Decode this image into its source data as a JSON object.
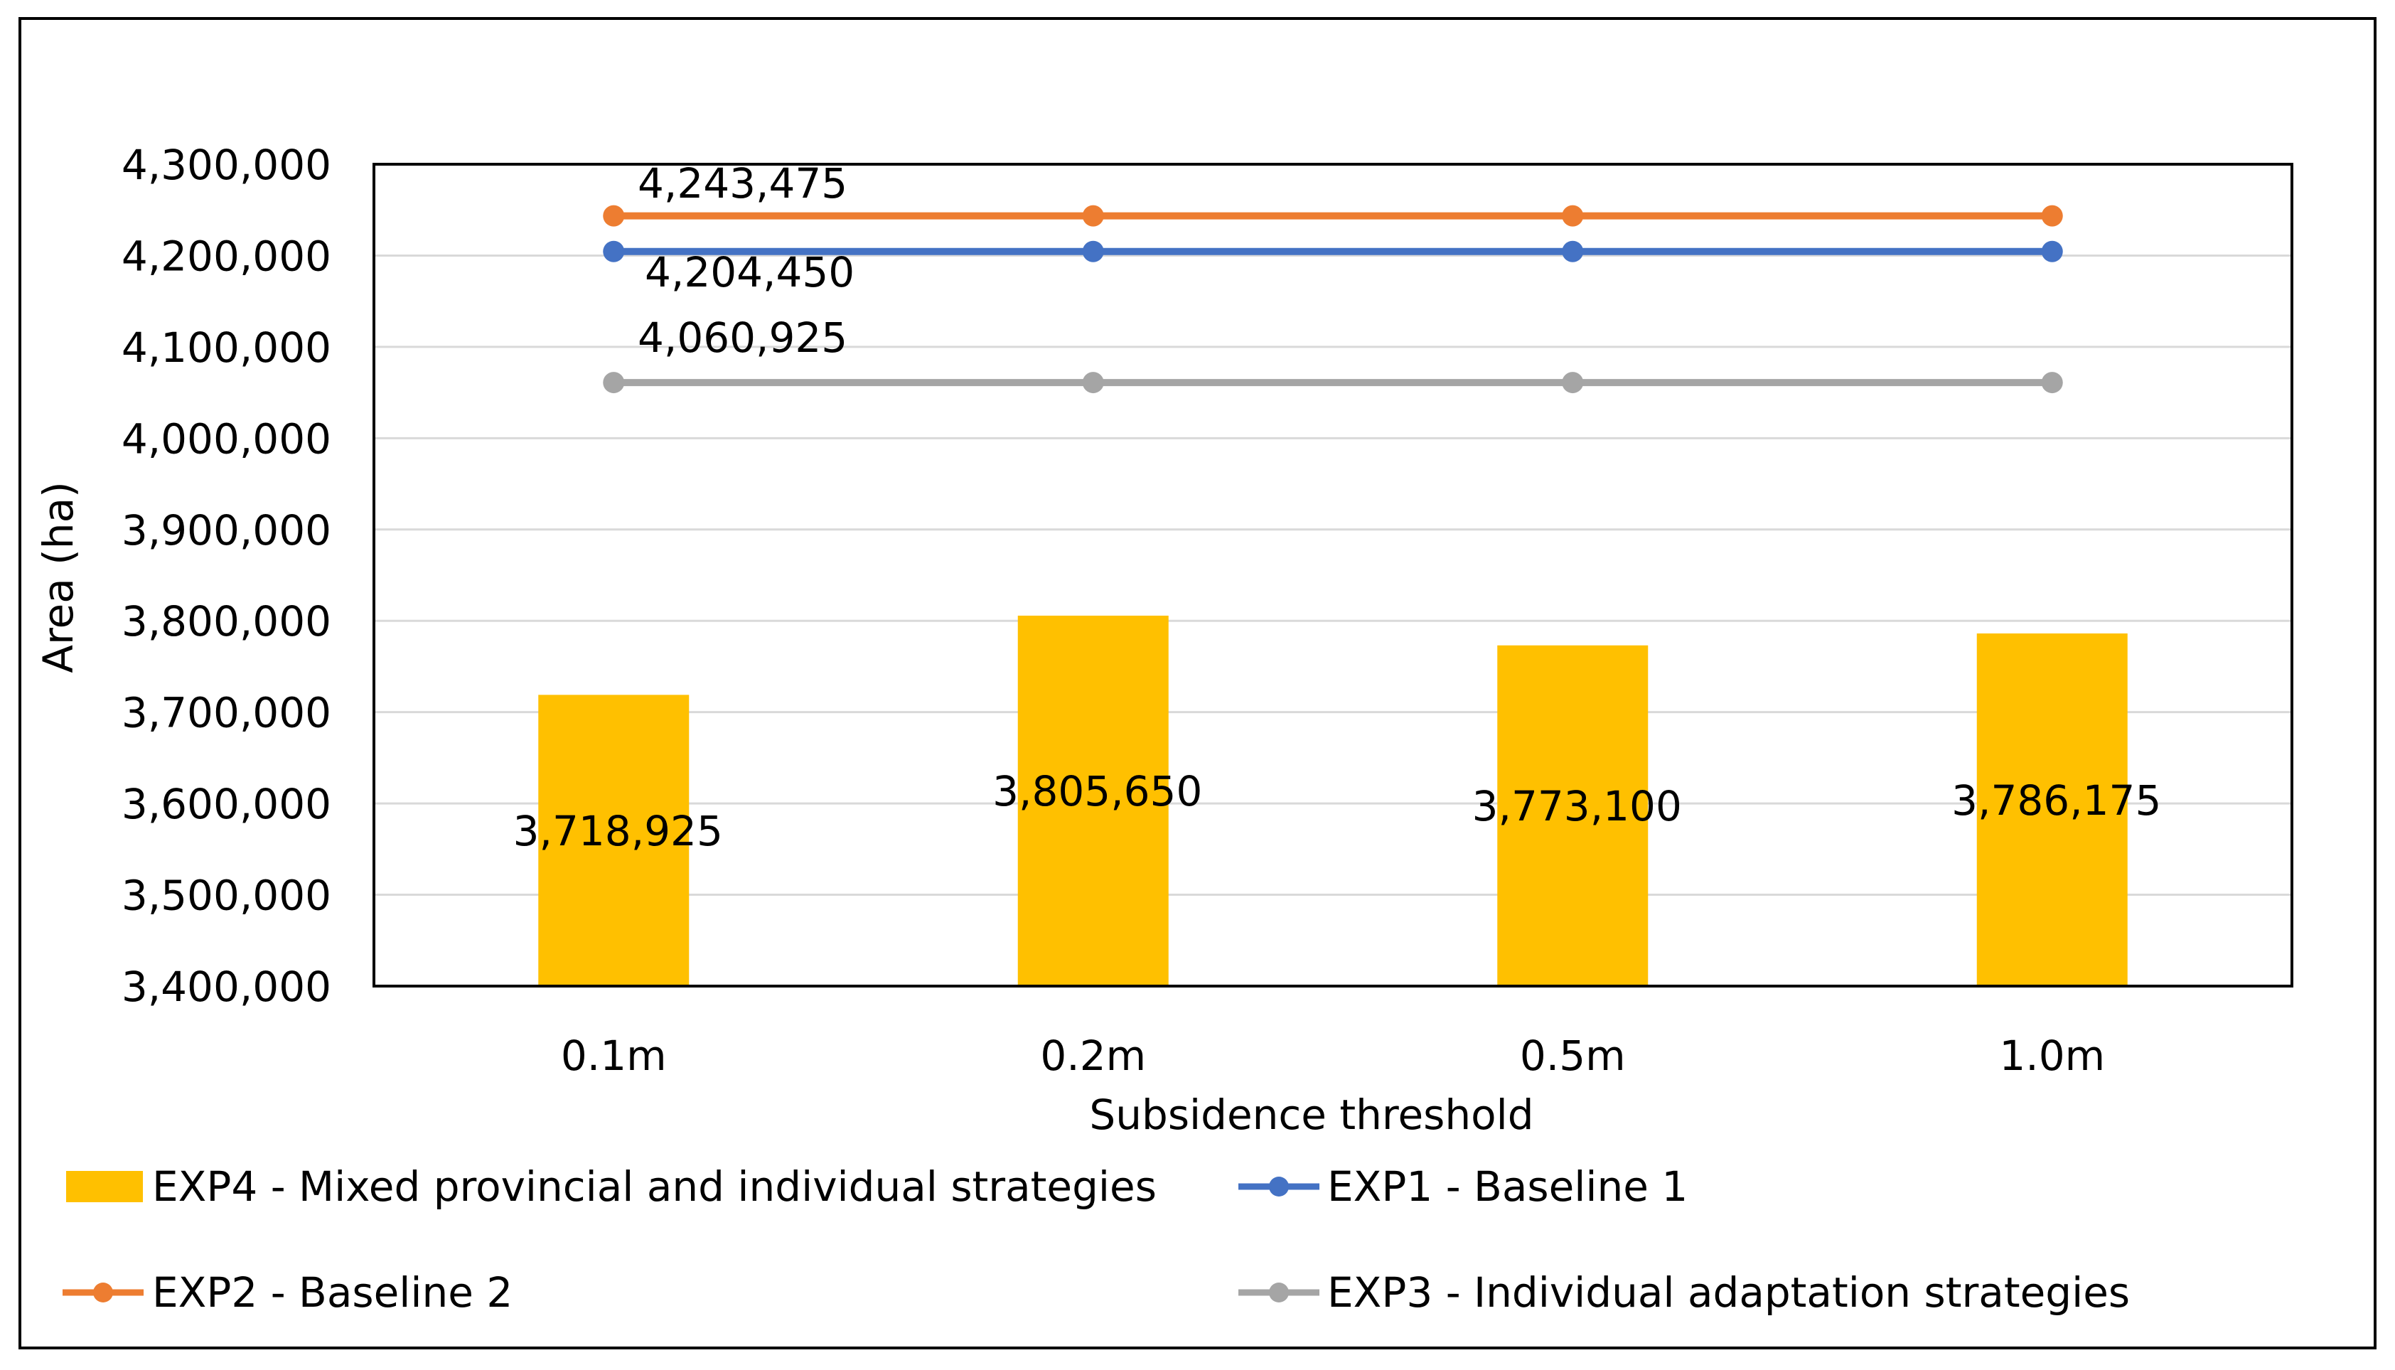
{
  "chart_data": {
    "type": "bar",
    "title": "",
    "xlabel": "Subsidence threshold",
    "ylabel": "Area (ha)",
    "ylim": [
      3400000,
      4300000
    ],
    "y_ticks": [
      3400000,
      3500000,
      3600000,
      3700000,
      3800000,
      3900000,
      4000000,
      4100000,
      4200000,
      4300000
    ],
    "y_tick_labels": [
      "3,400,000",
      "3,500,000",
      "3,600,000",
      "3,700,000",
      "3,800,000",
      "3,900,000",
      "4,000,000",
      "4,100,000",
      "4,200,000",
      "4,300,000"
    ],
    "categories": [
      "0.1m",
      "0.2m",
      "0.5m",
      "1.0m"
    ],
    "grid": true,
    "legend_position": "bottom",
    "series": [
      {
        "name": "EXP4 - Mixed provincial and individual strategies",
        "type": "bar",
        "color": "#FFC000",
        "values": [
          3718925,
          3805650,
          3773100,
          3786175
        ],
        "data_labels": [
          "3,718,925",
          "3,805,650",
          "3,773,100",
          "3,786,175"
        ]
      },
      {
        "name": "EXP1 - Baseline 1",
        "type": "line",
        "color": "#4472C4",
        "values": [
          4204450,
          4204450,
          4204450,
          4204450
        ],
        "data_label": "4,204,450"
      },
      {
        "name": "EXP2 - Baseline 2",
        "type": "line",
        "color": "#ED7D31",
        "values": [
          4243475,
          4243475,
          4243475,
          4243475
        ],
        "data_label": "4,243,475"
      },
      {
        "name": "EXP3 - Individual adaptation strategies",
        "type": "line",
        "color": "#A5A5A5",
        "values": [
          4060925,
          4060925,
          4060925,
          4060925
        ],
        "data_label": "4,060,925"
      }
    ]
  }
}
